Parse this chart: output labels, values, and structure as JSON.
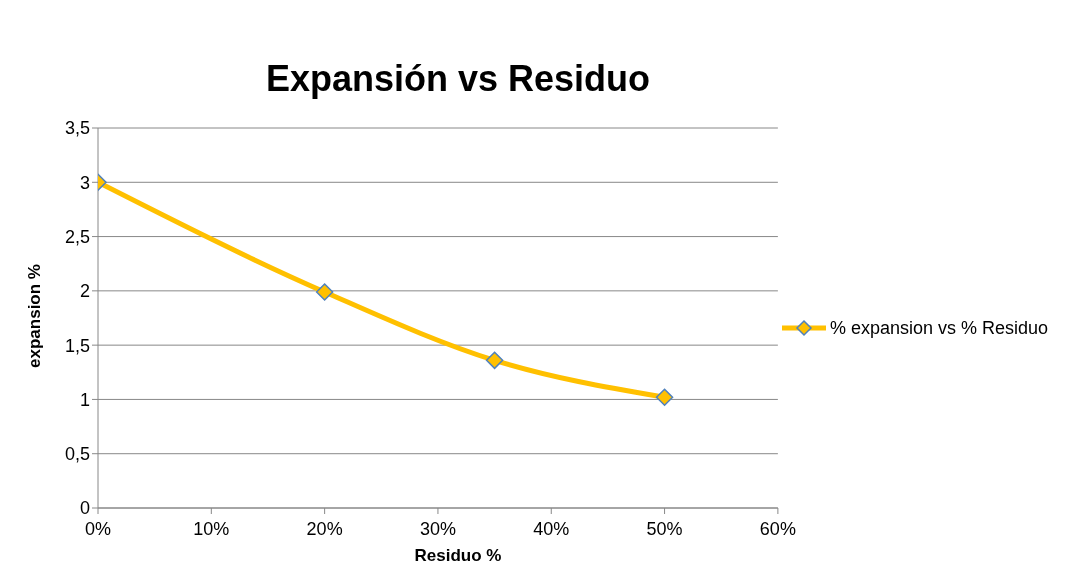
{
  "chart_data": {
    "type": "line",
    "title": "Expansión vs  Residuo",
    "xlabel": "Residuo %",
    "ylabel": "expansion %",
    "x": [
      0,
      20,
      35,
      50
    ],
    "series": [
      {
        "name": "% expansion vs % Residuo",
        "color": "#ffc000",
        "values": [
          3,
          1.99,
          1.36,
          1.02
        ]
      }
    ],
    "xlim": [
      0,
      60
    ],
    "xticks": [
      {
        "value": 0,
        "label": "0%"
      },
      {
        "value": 10,
        "label": "10%"
      },
      {
        "value": 20,
        "label": "20%"
      },
      {
        "value": 30,
        "label": "30%"
      },
      {
        "value": 40,
        "label": "40%"
      },
      {
        "value": 50,
        "label": "50%"
      },
      {
        "value": 60,
        "label": "60%"
      }
    ],
    "ylim": [
      0,
      3.5
    ],
    "yticks": [
      0,
      {
        "value": 0.5,
        "label": "0,5"
      },
      1,
      {
        "value": 1.5,
        "label": "1,5"
      },
      2,
      {
        "value": 2.5,
        "label": "2,5"
      },
      3,
      {
        "value": 3.5,
        "label": "3,5"
      }
    ],
    "grid": "y",
    "legend": "right",
    "marker": "diamond",
    "line_style": "solid"
  }
}
